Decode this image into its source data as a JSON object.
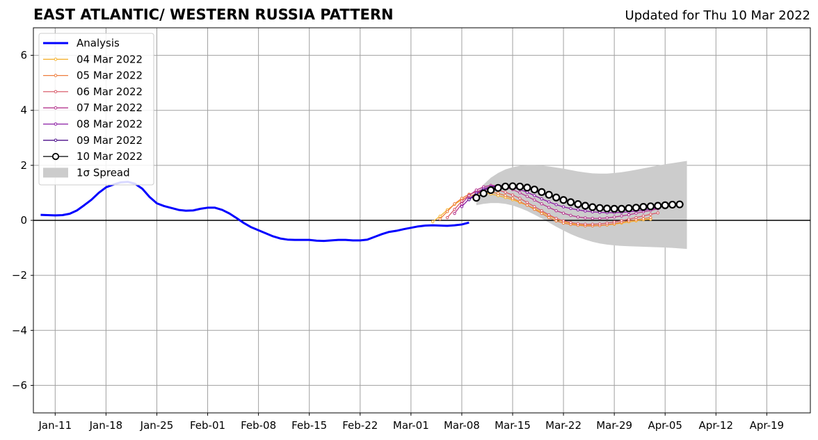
{
  "header": {
    "title": "EAST ATLANTIC/ WESTERN RUSSIA PATTERN",
    "updated": "Updated for Thu 10 Mar 2022"
  },
  "chart_data": {
    "type": "line",
    "title": "EAST ATLANTIC/ WESTERN RUSSIA PATTERN",
    "subtitle": "Updated for Thu 10 Mar 2022",
    "xlabel": "",
    "ylabel": "",
    "xlim": [
      "2022-01-08",
      "2022-04-25"
    ],
    "ylim": [
      -7,
      7
    ],
    "x_ticks": [
      "Jan-11",
      "Jan-18",
      "Jan-25",
      "Feb-01",
      "Feb-08",
      "Feb-15",
      "Feb-22",
      "Mar-01",
      "Mar-08",
      "Mar-15",
      "Mar-22",
      "Mar-29",
      "Apr-05",
      "Apr-12",
      "Apr-19"
    ],
    "y_ticks": [
      -6,
      -4,
      -2,
      0,
      2,
      4,
      6
    ],
    "y_tick_labels": [
      "−6",
      "−4",
      "−2",
      "0",
      "2",
      "4",
      "6"
    ],
    "grid": true,
    "legend_position": "top-left",
    "analysis": {
      "name": "Analysis",
      "color": "#0000ff",
      "start_date": "2022-01-09",
      "step_days": 1,
      "values": [
        0.2,
        0.19,
        0.18,
        0.19,
        0.24,
        0.36,
        0.55,
        0.75,
        1.0,
        1.2,
        1.3,
        1.38,
        1.4,
        1.33,
        1.15,
        0.85,
        0.62,
        0.52,
        0.45,
        0.38,
        0.35,
        0.36,
        0.42,
        0.46,
        0.46,
        0.38,
        0.25,
        0.08,
        -0.1,
        -0.25,
        -0.36,
        -0.47,
        -0.58,
        -0.66,
        -0.7,
        -0.71,
        -0.71,
        -0.71,
        -0.74,
        -0.75,
        -0.73,
        -0.71,
        -0.71,
        -0.73,
        -0.73,
        -0.7,
        -0.6,
        -0.5,
        -0.42,
        -0.38,
        -0.32,
        -0.27,
        -0.22,
        -0.19,
        -0.18,
        -0.19,
        -0.2,
        -0.18,
        -0.15,
        -0.08
      ]
    },
    "forecasts": [
      {
        "name": "04 Mar 2022",
        "color": "#f5b332",
        "start_date": "2022-03-04",
        "values": [
          -0.05,
          0.15,
          0.38,
          0.58,
          0.75,
          0.88,
          0.96,
          1.0,
          0.96,
          0.9,
          0.83,
          0.75,
          0.65,
          0.55,
          0.43,
          0.3,
          0.17,
          0.05,
          -0.05,
          -0.11,
          -0.15,
          -0.17,
          -0.18,
          -0.18,
          -0.17,
          -0.14,
          -0.1,
          -0.06,
          -0.02,
          0.02,
          0.04
        ]
      },
      {
        "name": "05 Mar 2022",
        "color": "#ee7d3d",
        "start_date": "2022-03-05",
        "values": [
          0.05,
          0.32,
          0.6,
          0.8,
          0.95,
          1.03,
          1.06,
          1.03,
          0.98,
          0.9,
          0.8,
          0.68,
          0.55,
          0.4,
          0.25,
          0.1,
          -0.02,
          -0.1,
          -0.15,
          -0.18,
          -0.2,
          -0.2,
          -0.19,
          -0.16,
          -0.12,
          -0.07,
          -0.02,
          0.02,
          0.06,
          0.1
        ]
      },
      {
        "name": "06 Mar 2022",
        "color": "#d95b6b",
        "start_date": "2022-03-06",
        "values": [
          0.1,
          0.4,
          0.7,
          0.92,
          1.05,
          1.12,
          1.14,
          1.1,
          1.02,
          0.92,
          0.8,
          0.65,
          0.5,
          0.35,
          0.2,
          0.07,
          -0.02,
          -0.08,
          -0.12,
          -0.14,
          -0.14,
          -0.13,
          -0.1,
          -0.06,
          -0.01,
          0.04,
          0.1,
          0.16,
          0.22,
          0.27
        ]
      },
      {
        "name": "07 Mar 2022",
        "color": "#b5378f",
        "start_date": "2022-03-07",
        "values": [
          0.25,
          0.6,
          0.9,
          1.1,
          1.22,
          1.27,
          1.26,
          1.2,
          1.12,
          1.0,
          0.87,
          0.74,
          0.6,
          0.47,
          0.35,
          0.26,
          0.18,
          0.12,
          0.09,
          0.07,
          0.07,
          0.09,
          0.12,
          0.16,
          0.2,
          0.26,
          0.31,
          0.36,
          0.42
        ]
      },
      {
        "name": "08 Mar 2022",
        "color": "#8a1ba3",
        "start_date": "2022-03-08",
        "values": [
          0.5,
          0.78,
          1.0,
          1.15,
          1.23,
          1.26,
          1.25,
          1.2,
          1.12,
          1.02,
          0.9,
          0.78,
          0.67,
          0.57,
          0.49,
          0.43,
          0.38,
          0.34,
          0.31,
          0.29,
          0.28,
          0.28,
          0.29,
          0.31,
          0.34,
          0.37,
          0.41,
          0.45
        ]
      },
      {
        "name": "09 Mar 2022",
        "color": "#4b0d8a",
        "start_date": "2022-03-09",
        "values": [
          0.75,
          0.95,
          1.1,
          1.2,
          1.25,
          1.27,
          1.26,
          1.22,
          1.16,
          1.08,
          0.99,
          0.9,
          0.81,
          0.72,
          0.65,
          0.58,
          0.52,
          0.47,
          0.43,
          0.41,
          0.4,
          0.4,
          0.41,
          0.42,
          0.44,
          0.47,
          0.5
        ]
      },
      {
        "name": "10 Mar 2022",
        "color": "#000000",
        "start_date": "2022-03-10",
        "values": [
          0.82,
          0.98,
          1.1,
          1.18,
          1.23,
          1.24,
          1.23,
          1.19,
          1.12,
          1.03,
          0.93,
          0.83,
          0.74,
          0.66,
          0.59,
          0.53,
          0.48,
          0.45,
          0.43,
          0.42,
          0.42,
          0.44,
          0.46,
          0.49,
          0.51,
          0.53,
          0.55,
          0.57,
          0.58
        ]
      }
    ],
    "spread": {
      "name": "1σ Spread",
      "color": "#cccccc",
      "start_date": "2022-03-10",
      "upper": [
        0.95,
        1.3,
        1.55,
        1.72,
        1.85,
        1.93,
        1.98,
        2.0,
        2.0,
        1.99,
        1.96,
        1.92,
        1.88,
        1.83,
        1.78,
        1.74,
        1.71,
        1.7,
        1.7,
        1.72,
        1.75,
        1.79,
        1.84,
        1.89,
        1.94,
        1.99,
        2.04,
        2.08,
        2.12,
        2.16
      ],
      "lower": [
        0.55,
        0.6,
        0.63,
        0.63,
        0.6,
        0.54,
        0.45,
        0.34,
        0.21,
        0.07,
        -0.08,
        -0.23,
        -0.37,
        -0.5,
        -0.61,
        -0.7,
        -0.78,
        -0.84,
        -0.88,
        -0.91,
        -0.93,
        -0.94,
        -0.95,
        -0.96,
        -0.97,
        -0.98,
        -0.99,
        -1.0,
        -1.02,
        -1.04
      ]
    }
  }
}
